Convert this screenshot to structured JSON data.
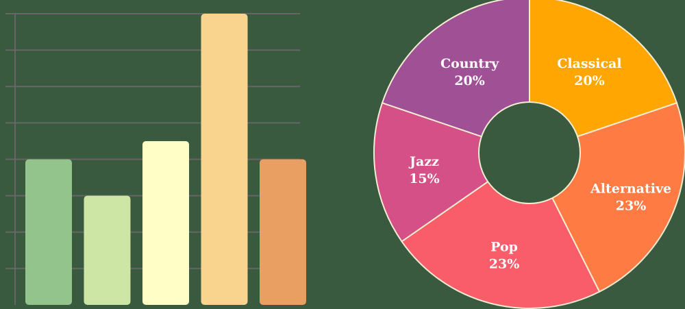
{
  "chart_data": [
    {
      "type": "bar",
      "title": "",
      "xlabel": "",
      "ylabel": "",
      "categories": [
        "",
        "",
        "",
        "",
        ""
      ],
      "values": [
        4,
        3,
        4.5,
        8,
        4
      ],
      "ylim": [
        0,
        8
      ],
      "grid": true,
      "colors": [
        "#93c48b",
        "#cde5a5",
        "#fefec6",
        "#f8d48f",
        "#ea9f62"
      ],
      "gridline_color": "#666666"
    },
    {
      "type": "pie",
      "title": "",
      "donut": true,
      "slices": [
        {
          "name": "Classical",
          "value": 20,
          "label": "20%",
          "color": "#ffa602"
        },
        {
          "name": "Alternative",
          "value": 23,
          "label": "23%",
          "color": "#fe7c43"
        },
        {
          "name": "Pop",
          "value": 23,
          "label": "23%",
          "color": "#f95d6a"
        },
        {
          "name": "Jazz",
          "value": 15,
          "label": "15%",
          "color": "#d45087"
        },
        {
          "name": "Country",
          "value": 20,
          "label": "20%",
          "color": "#a05195"
        }
      ],
      "stroke_color": "#f5edd2"
    }
  ]
}
